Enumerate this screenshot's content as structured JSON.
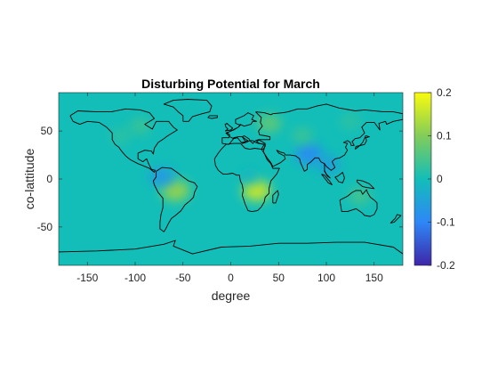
{
  "chart_data": {
    "type": "heatmap",
    "title": "Disturbing Potential for March",
    "xlabel": "degree",
    "ylabel": "co-lattitude",
    "xlim": [
      -180,
      180
    ],
    "ylim": [
      -90,
      90
    ],
    "xticks": [
      -150,
      -100,
      -50,
      0,
      50,
      100,
      150
    ],
    "yticks": [
      -50,
      0,
      50
    ],
    "grid": false,
    "colorbar": {
      "limits": [
        -0.2,
        0.2
      ],
      "ticks": [
        0.2,
        0.1,
        0,
        -0.1,
        -0.2
      ],
      "colormap": "parula",
      "colors": [
        "#3e26a8",
        "#2e87f7",
        "#13beb8",
        "#82cc5a",
        "#f9fb0e"
      ]
    },
    "background_value": 0.0,
    "features": [
      {
        "region": "Amazon basin",
        "lon": -58,
        "lat": -12,
        "value": 0.11
      },
      {
        "region": "Northwest South America",
        "lon": -72,
        "lat": 2,
        "value": -0.07
      },
      {
        "region": "Southern Africa (Zambezi)",
        "lon": 27,
        "lat": -12,
        "value": 0.15
      },
      {
        "region": "Central Africa",
        "lon": 20,
        "lat": 2,
        "value": -0.02
      },
      {
        "region": "Eastern Europe / Western Russia",
        "lon": 40,
        "lat": 58,
        "value": 0.07
      },
      {
        "region": "Northern India / Ganges",
        "lon": 82,
        "lat": 26,
        "value": -0.09
      },
      {
        "region": "Indochina",
        "lon": 102,
        "lat": 15,
        "value": -0.06
      },
      {
        "region": "Central Asia",
        "lon": 75,
        "lat": 45,
        "value": 0.04
      },
      {
        "region": "Northern Australia",
        "lon": 135,
        "lat": -18,
        "value": 0.05
      },
      {
        "region": "North America (Hudson Bay)",
        "lon": -95,
        "lat": 55,
        "value": 0.04
      },
      {
        "region": "Eastern Siberia",
        "lon": 125,
        "lat": 60,
        "value": 0.03
      },
      {
        "region": "Western North America",
        "lon": -115,
        "lat": 45,
        "value": 0.03
      }
    ]
  }
}
